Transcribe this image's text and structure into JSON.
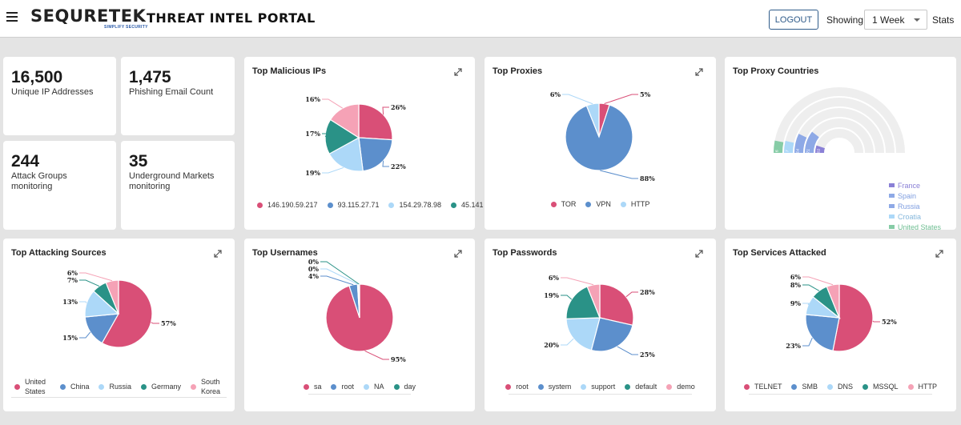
{
  "header": {
    "logo": "SEQURETEK",
    "tagline": "SIMPLIFY SECURITY",
    "portal_title": "THREAT INTEL PORTAL",
    "logout_label": "LOGOUT",
    "showing_label": "Showing",
    "period_selected": "1 Week",
    "stats_label": "Stats"
  },
  "stats": [
    {
      "value": "16,500",
      "label": "Unique IP Addresses"
    },
    {
      "value": "1,475",
      "label": "Phishing Email Count"
    },
    {
      "value": "244",
      "label": "Attack Groups monitoring"
    },
    {
      "value": "35",
      "label": "Underground Markets monitoring"
    }
  ],
  "colors": {
    "pink": "#d94f77",
    "blue": "#5c8fcc",
    "lightblue": "#acd8f8",
    "teal": "#2a9287",
    "lightpink": "#f5a2b6",
    "purple": "#8a80d6",
    "periwinkle": "#8ea9e6",
    "mint": "#86cca6",
    "track": "#eeeeee"
  },
  "panels": {
    "malicious_ips": {
      "title": "Top Malicious IPs",
      "slices": [
        {
          "label": "146.190.59.217",
          "value": 26,
          "text": "26%",
          "color": "#d94f77"
        },
        {
          "label": "93.115.27.71",
          "value": 22,
          "text": "22%",
          "color": "#5c8fcc"
        },
        {
          "label": "154.29.78.98",
          "value": 19,
          "text": "19%",
          "color": "#acd8f8"
        },
        {
          "label": "45.141",
          "value": 17,
          "text": "17%",
          "color": "#2a9287"
        },
        {
          "label": "",
          "value": 16,
          "text": "16%",
          "color": "#f5a2b6"
        }
      ]
    },
    "proxies": {
      "title": "Top Proxies",
      "slices": [
        {
          "label": "TOR",
          "value": 5,
          "text": "5%",
          "color": "#d94f77"
        },
        {
          "label": "VPN",
          "value": 88,
          "text": "88%",
          "color": "#5c8fcc"
        },
        {
          "label": "HTTP",
          "value": 6,
          "text": "6%",
          "color": "#acd8f8"
        }
      ]
    },
    "proxy_countries": {
      "title": "Top Proxy Countries",
      "bars": [
        {
          "label": "France",
          "value": 10,
          "text": "10",
          "color": "#8a80d6"
        },
        {
          "label": "Spain",
          "value": 21,
          "text": "21",
          "color": "#8ea9e6"
        },
        {
          "label": "Russia",
          "value": 14,
          "text": "14",
          "color": "#8ea9e6"
        },
        {
          "label": "Croatia",
          "value": 7,
          "text": "7",
          "color": "#acd8f8"
        },
        {
          "label": "United States",
          "value": 6,
          "text": "6",
          "color": "#86cca6"
        }
      ]
    },
    "attacking_sources": {
      "title": "Top Attacking Sources",
      "slices": [
        {
          "label": "United States",
          "value": 57,
          "text": "57%",
          "color": "#d94f77"
        },
        {
          "label": "China",
          "value": 15,
          "text": "15%",
          "color": "#5c8fcc"
        },
        {
          "label": "Russia",
          "value": 13,
          "text": "13%",
          "color": "#acd8f8"
        },
        {
          "label": "Germany",
          "value": 7,
          "text": "7%",
          "color": "#2a9287"
        },
        {
          "label": "South Korea",
          "value": 6,
          "text": "6%",
          "color": "#f5a2b6"
        }
      ]
    },
    "usernames": {
      "title": "Top Usernames",
      "slices": [
        {
          "label": "sa",
          "value": 95,
          "text": "95%",
          "color": "#d94f77"
        },
        {
          "label": "root",
          "value": 4,
          "text": "4%",
          "color": "#5c8fcc"
        },
        {
          "label": "NA",
          "value": 0.5,
          "text": "0%",
          "color": "#acd8f8"
        },
        {
          "label": "day",
          "value": 0.5,
          "text": "0%",
          "color": "#2a9287"
        }
      ]
    },
    "passwords": {
      "title": "Top Passwords",
      "slices": [
        {
          "label": "root",
          "value": 28,
          "text": "28%",
          "color": "#d94f77"
        },
        {
          "label": "system",
          "value": 25,
          "text": "25%",
          "color": "#5c8fcc"
        },
        {
          "label": "support",
          "value": 20,
          "text": "20%",
          "color": "#acd8f8"
        },
        {
          "label": "default",
          "value": 19,
          "text": "19%",
          "color": "#2a9287"
        },
        {
          "label": "demo",
          "value": 6,
          "text": "6%",
          "color": "#f5a2b6"
        }
      ]
    },
    "services": {
      "title": "Top Services Attacked",
      "slices": [
        {
          "label": "TELNET",
          "value": 52,
          "text": "52%",
          "color": "#d94f77"
        },
        {
          "label": "SMB",
          "value": 23,
          "text": "23%",
          "color": "#5c8fcc"
        },
        {
          "label": "DNS",
          "value": 9,
          "text": "9%",
          "color": "#acd8f8"
        },
        {
          "label": "MSSQL",
          "value": 8,
          "text": "8%",
          "color": "#2a9287"
        },
        {
          "label": "HTTP",
          "value": 6,
          "text": "6%",
          "color": "#f5a2b6"
        }
      ]
    }
  },
  "chart_data": [
    {
      "type": "pie",
      "title": "Top Malicious IPs",
      "categories": [
        "146.190.59.217",
        "93.115.27.71",
        "154.29.78.98",
        "45.141",
        "(unlabeled)"
      ],
      "values": [
        26,
        22,
        19,
        17,
        16
      ]
    },
    {
      "type": "pie",
      "title": "Top Proxies",
      "categories": [
        "TOR",
        "VPN",
        "HTTP"
      ],
      "values": [
        5,
        88,
        6
      ]
    },
    {
      "type": "bar",
      "title": "Top Proxy Countries",
      "categories": [
        "France",
        "Spain",
        "Russia",
        "Croatia",
        "United States"
      ],
      "values": [
        10,
        21,
        14,
        7,
        6
      ]
    },
    {
      "type": "pie",
      "title": "Top Attacking Sources",
      "categories": [
        "United States",
        "China",
        "Russia",
        "Germany",
        "South Korea"
      ],
      "values": [
        57,
        15,
        13,
        7,
        6
      ]
    },
    {
      "type": "pie",
      "title": "Top Usernames",
      "categories": [
        "sa",
        "root",
        "NA",
        "day"
      ],
      "values": [
        95,
        4,
        0,
        0
      ]
    },
    {
      "type": "pie",
      "title": "Top Passwords",
      "categories": [
        "root",
        "system",
        "support",
        "default",
        "demo"
      ],
      "values": [
        28,
        25,
        20,
        19,
        6
      ]
    },
    {
      "type": "pie",
      "title": "Top Services Attacked",
      "categories": [
        "TELNET",
        "SMB",
        "DNS",
        "MSSQL",
        "HTTP"
      ],
      "values": [
        52,
        23,
        9,
        8,
        6
      ]
    }
  ]
}
